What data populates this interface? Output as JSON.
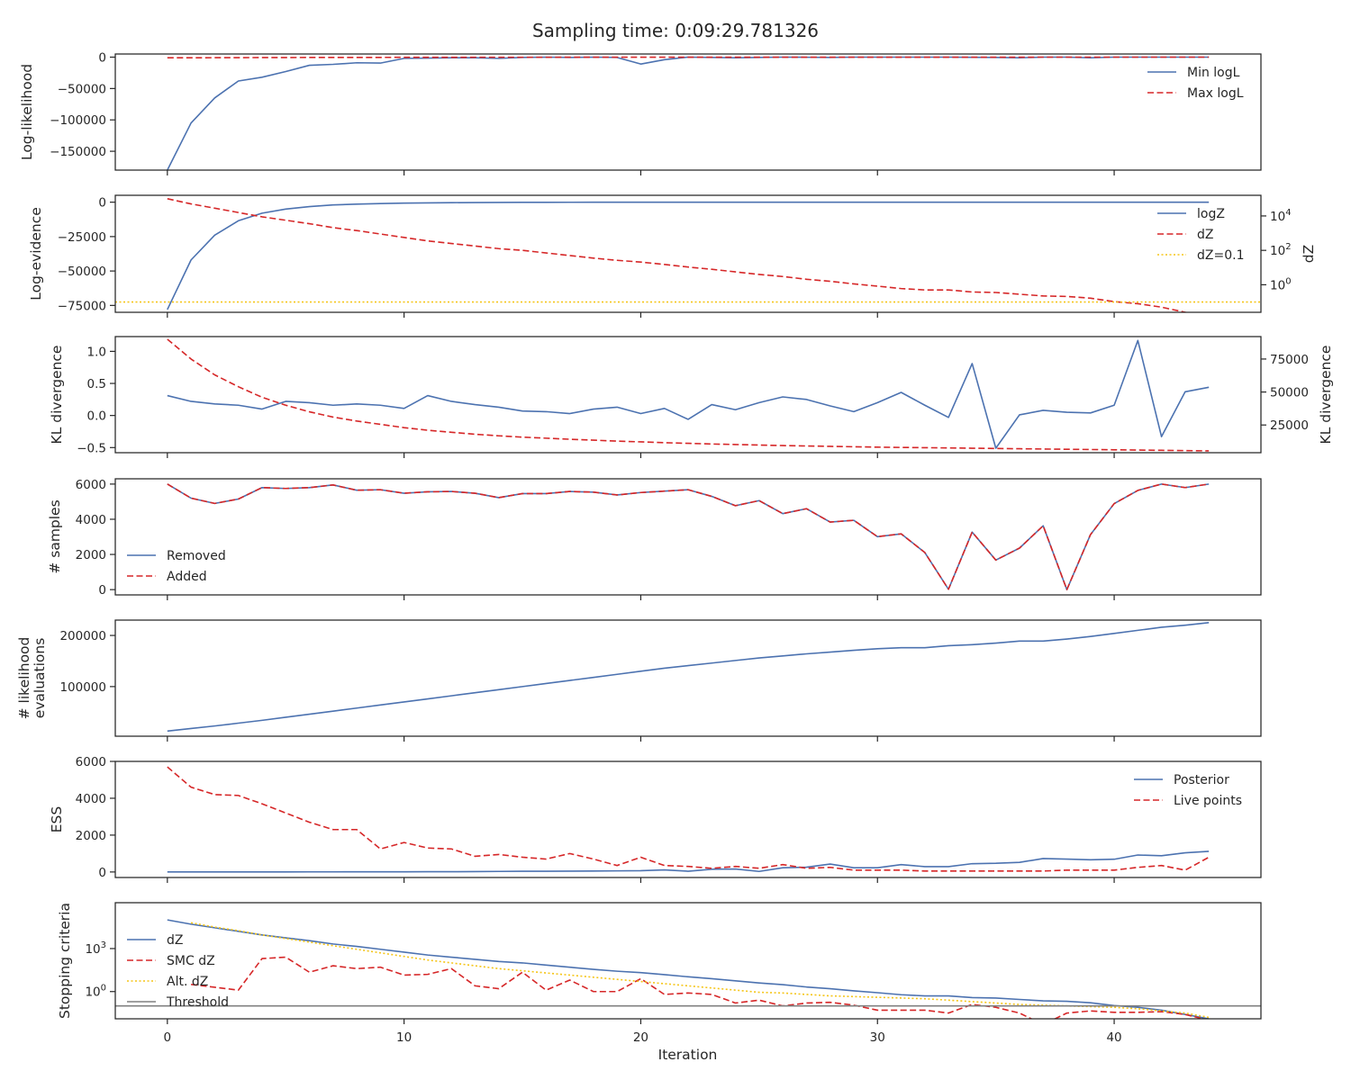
{
  "figure": {
    "title": "Sampling time: 0:09:29.781326",
    "xlabel": "Iteration"
  },
  "colors": {
    "blue": "#4c72b0",
    "red": "#d62728",
    "gold": "#f5c518",
    "grey": "#808080",
    "frame": "#262626"
  },
  "chart_data": [
    {
      "type": "line",
      "ylabel": "Log-likelihood",
      "ylim": [
        -180000,
        5000
      ],
      "yticks": [
        0,
        -50000,
        -100000,
        -150000
      ],
      "ytick_labels": [
        "0",
        "−50000",
        "−100000",
        "−150000"
      ],
      "legend": {
        "position": "top-right"
      },
      "series": [
        {
          "name": "Min logL",
          "style": "solid",
          "color": "blue",
          "x_start": 0,
          "values": [
            -180000,
            -105000,
            -65000,
            -38000,
            -32000,
            -23000,
            -13000,
            -11500,
            -9000,
            -9500,
            -2000,
            -1500,
            -1000,
            -1000,
            -2000,
            -500,
            0,
            -500,
            0,
            -500,
            -11000,
            -4000,
            0,
            -500,
            -1000,
            -500,
            0,
            -200,
            -500,
            0,
            0,
            0,
            0,
            0,
            -300,
            -500,
            -1000,
            0,
            0,
            -1000,
            0,
            0,
            0,
            0,
            0
          ]
        },
        {
          "name": "Max logL",
          "style": "dashed",
          "color": "red",
          "x_start": 0,
          "values": [
            -1000,
            -1000,
            -900,
            -800,
            -700,
            -600,
            -500,
            -500,
            -400,
            -400,
            -300,
            -300,
            -300,
            -200,
            -200,
            -200,
            -200,
            -150,
            -150,
            -150,
            -150,
            -100,
            -100,
            -100,
            -100,
            -100,
            -80,
            -80,
            -80,
            -60,
            -60,
            -60,
            -60,
            -50,
            -50,
            -50,
            -50,
            -40,
            -40,
            -40,
            -30,
            -30,
            -30,
            -30,
            -20
          ]
        }
      ]
    },
    {
      "type": "line",
      "ylabel": "Log-evidence",
      "ylim": [
        -80000,
        5000
      ],
      "yticks": [
        0,
        -25000,
        -50000,
        -75000
      ],
      "ytick_labels": [
        "0",
        "−25000",
        "−50000",
        "−75000"
      ],
      "y2label": "dZ",
      "y2_scale": "log",
      "y2lim_log10": [
        -1.6,
        5.2
      ],
      "y2ticks_exp": [
        4,
        2,
        0
      ],
      "y2tick_base": "10",
      "legend": {
        "position": "top-right"
      },
      "series": [
        {
          "name": "logZ",
          "style": "solid",
          "color": "blue",
          "axis": "left",
          "x_start": 0,
          "values": [
            -78000,
            -42000,
            -24000,
            -13500,
            -8000,
            -5000,
            -3200,
            -2000,
            -1400,
            -1000,
            -700,
            -500,
            -350,
            -250,
            -180,
            -130,
            -90,
            -65,
            -50,
            -38,
            -28,
            -22,
            -16,
            -12,
            -9,
            -7,
            -5,
            -4,
            -3,
            -2,
            -1.5,
            -1,
            -1,
            -1,
            -1,
            -1,
            -1,
            -1,
            -1,
            -1,
            -1,
            -1,
            -1,
            -1,
            -1
          ]
        },
        {
          "name": "dZ",
          "style": "dashed",
          "color": "red",
          "axis": "right",
          "x_start": 0,
          "values_log10": [
            5.0,
            4.7,
            4.45,
            4.2,
            3.95,
            3.75,
            3.55,
            3.32,
            3.15,
            2.95,
            2.75,
            2.55,
            2.4,
            2.25,
            2.1,
            2.0,
            1.85,
            1.7,
            1.55,
            1.42,
            1.32,
            1.18,
            1.03,
            0.9,
            0.75,
            0.6,
            0.48,
            0.32,
            0.2,
            0.05,
            -0.08,
            -0.22,
            -0.3,
            -0.3,
            -0.42,
            -0.45,
            -0.55,
            -0.65,
            -0.68,
            -0.78,
            -0.98,
            -1.1,
            -1.3,
            -1.6,
            -1.9
          ]
        },
        {
          "name": "dZ=0.1",
          "style": "dotted",
          "color": "gold",
          "axis": "right",
          "constant_log10": -1
        }
      ]
    },
    {
      "type": "line",
      "ylabel": "KL divergence",
      "ylim": [
        -0.58,
        1.23
      ],
      "yticks": [
        1.0,
        0.5,
        0.0,
        -0.5
      ],
      "ytick_labels": [
        "1.0",
        "0.5",
        "0.0",
        "−0.5"
      ],
      "y2label": "KL divergence",
      "y2lim": [
        4000,
        92000
      ],
      "y2ticks": [
        75000,
        50000,
        25000
      ],
      "y2tick_labels": [
        "75000",
        "50000",
        "25000"
      ],
      "series": [
        {
          "style": "solid",
          "color": "blue",
          "axis": "left",
          "x_start": 0,
          "values": [
            0.31,
            0.22,
            0.18,
            0.16,
            0.1,
            0.22,
            0.2,
            0.16,
            0.18,
            0.16,
            0.11,
            0.31,
            0.22,
            0.17,
            0.13,
            0.07,
            0.06,
            0.03,
            0.1,
            0.13,
            0.03,
            0.11,
            -0.06,
            0.17,
            0.09,
            0.2,
            0.29,
            0.25,
            0.15,
            0.06,
            0.2,
            0.36,
            0.16,
            -0.03,
            0.81,
            -0.51,
            0.01,
            0.08,
            0.05,
            0.04,
            0.16,
            1.17,
            -0.33,
            0.37,
            0.44
          ]
        },
        {
          "style": "dashed",
          "color": "red",
          "axis": "right",
          "x_start": 0,
          "values": [
            90000,
            75000,
            63000,
            54000,
            46000,
            40000,
            35000,
            31000,
            28000,
            25500,
            23000,
            21000,
            19500,
            18000,
            16800,
            15800,
            15000,
            14200,
            13500,
            12800,
            12200,
            11600,
            11100,
            10600,
            10200,
            9800,
            9400,
            9100,
            8800,
            8500,
            8200,
            8000,
            7800,
            7600,
            7400,
            7200,
            7000,
            6800,
            6600,
            6400,
            6200,
            6000,
            5800,
            5600,
            5400
          ]
        }
      ]
    },
    {
      "type": "line",
      "ylabel": "# samples",
      "ylim": [
        -300,
        6300
      ],
      "yticks": [
        6000,
        4000,
        2000,
        0
      ],
      "ytick_labels": [
        "6000",
        "4000",
        "2000",
        "0"
      ],
      "legend": {
        "position": "center-left"
      },
      "series": [
        {
          "name": "Removed",
          "style": "solid",
          "color": "blue",
          "x_start": 0,
          "values": [
            6000,
            5200,
            4900,
            5150,
            5800,
            5750,
            5800,
            5950,
            5650,
            5680,
            5480,
            5560,
            5580,
            5480,
            5230,
            5460,
            5460,
            5580,
            5540,
            5380,
            5520,
            5600,
            5680,
            5300,
            4770,
            5060,
            4320,
            4600,
            3840,
            3940,
            3010,
            3170,
            2110,
            20,
            3270,
            1680,
            2360,
            3630,
            0,
            3130,
            4890,
            5640,
            6000,
            5800,
            6000
          ]
        },
        {
          "name": "Added",
          "style": "dashed",
          "color": "red",
          "x_start": 0,
          "values": [
            6000,
            5200,
            4900,
            5150,
            5800,
            5750,
            5800,
            5950,
            5650,
            5680,
            5480,
            5560,
            5580,
            5480,
            5230,
            5460,
            5460,
            5580,
            5540,
            5380,
            5520,
            5600,
            5680,
            5300,
            4770,
            5060,
            4320,
            4600,
            3840,
            3940,
            3010,
            3170,
            2110,
            20,
            3270,
            1680,
            2360,
            3630,
            0,
            3130,
            4890,
            5640,
            6000,
            5800,
            6000
          ]
        }
      ]
    },
    {
      "type": "line",
      "ylabel": "# likelihood\nevaluations",
      "ylabel_lines": [
        "# likelihood",
        "evaluations"
      ],
      "ylim": [
        3000,
        230000
      ],
      "yticks": [
        200000,
        100000
      ],
      "ytick_labels": [
        "200000",
        "100000"
      ],
      "series": [
        {
          "style": "solid",
          "color": "blue",
          "x_start": 0,
          "values": [
            13000,
            18000,
            23000,
            28500,
            34000,
            40000,
            46000,
            52000,
            58000,
            64000,
            70000,
            76000,
            82000,
            88000,
            94000,
            100000,
            106000,
            112000,
            118000,
            124000,
            130000,
            136000,
            141000,
            146000,
            151000,
            156000,
            160000,
            164000,
            167500,
            171000,
            174000,
            176000,
            176000,
            180000,
            182000,
            185000,
            189000,
            189000,
            193000,
            198000,
            204000,
            210000,
            216000,
            220000,
            225000
          ]
        }
      ]
    },
    {
      "type": "line",
      "ylabel": "ESS",
      "ylim": [
        -300,
        6000
      ],
      "yticks": [
        6000,
        4000,
        2000,
        0
      ],
      "ytick_labels": [
        "6000",
        "4000",
        "2000",
        "0"
      ],
      "legend": {
        "position": "top-right"
      },
      "series": [
        {
          "name": "Posterior",
          "style": "solid",
          "color": "blue",
          "x_start": 0,
          "values": [
            0,
            0,
            0,
            0,
            0,
            0,
            5,
            5,
            10,
            10,
            10,
            15,
            15,
            20,
            30,
            40,
            40,
            45,
            50,
            60,
            70,
            110,
            40,
            150,
            160,
            30,
            230,
            260,
            430,
            230,
            230,
            400,
            290,
            290,
            450,
            470,
            520,
            730,
            700,
            660,
            690,
            920,
            880,
            1040,
            1120
          ]
        },
        {
          "name": "Live points",
          "style": "dashed",
          "color": "red",
          "x_start": 0,
          "values": [
            5700,
            4600,
            4200,
            4150,
            3700,
            3200,
            2700,
            2300,
            2300,
            1250,
            1600,
            1300,
            1250,
            850,
            950,
            800,
            700,
            1000,
            700,
            350,
            800,
            350,
            300,
            200,
            300,
            200,
            400,
            200,
            250,
            100,
            100,
            100,
            50,
            50,
            50,
            50,
            50,
            50,
            100,
            100,
            100,
            250,
            350,
            100,
            800
          ]
        }
      ]
    },
    {
      "type": "line",
      "ylabel": "Stopping criteria",
      "y_scale": "log",
      "ylim_log10": [
        -1.9,
        6.2
      ],
      "yticks_exp": [
        3,
        0
      ],
      "ytick_base": "10",
      "legend": {
        "position": "center-left"
      },
      "series": [
        {
          "name": "dZ",
          "style": "solid",
          "color": "blue",
          "x_start": 0,
          "values_log10": [
            5.0,
            4.7,
            4.45,
            4.2,
            3.95,
            3.75,
            3.55,
            3.32,
            3.15,
            2.95,
            2.75,
            2.55,
            2.4,
            2.25,
            2.1,
            2.0,
            1.85,
            1.7,
            1.55,
            1.42,
            1.32,
            1.18,
            1.03,
            0.9,
            0.75,
            0.6,
            0.48,
            0.32,
            0.2,
            0.05,
            -0.08,
            -0.22,
            -0.3,
            -0.3,
            -0.42,
            -0.45,
            -0.55,
            -0.65,
            -0.68,
            -0.78,
            -0.98,
            -1.1,
            -1.3,
            -1.6,
            -1.9
          ]
        },
        {
          "name": "SMC dZ",
          "style": "dashed",
          "color": "red",
          "x_start": 1,
          "values_log10": [
            0.5,
            0.3,
            0.1,
            2.3,
            2.4,
            1.35,
            1.8,
            1.6,
            1.7,
            1.15,
            1.2,
            1.6,
            0.4,
            0.2,
            1.35,
            0.1,
            0.8,
            0.0,
            0.0,
            0.9,
            -0.2,
            -0.1,
            -0.2,
            -0.8,
            -0.6,
            -1.0,
            -0.8,
            -0.75,
            -0.95,
            -1.3,
            -1.3,
            -1.3,
            -1.5,
            -0.9,
            -1.1,
            -1.5,
            -2.3,
            -1.5,
            -1.35,
            -1.45,
            -1.45,
            -1.4,
            -1.6,
            -2.0
          ]
        },
        {
          "name": "Alt. dZ",
          "style": "dotted",
          "color": "gold",
          "x_start": 1,
          "values_log10": [
            4.8,
            4.5,
            4.25,
            3.95,
            3.7,
            3.45,
            3.2,
            2.95,
            2.7,
            2.45,
            2.2,
            2.0,
            1.8,
            1.6,
            1.45,
            1.3,
            1.15,
            1.0,
            0.85,
            0.7,
            0.55,
            0.4,
            0.25,
            0.1,
            -0.05,
            -0.1,
            -0.2,
            -0.3,
            -0.35,
            -0.4,
            -0.45,
            -0.5,
            -0.6,
            -0.7,
            -0.8,
            -0.9,
            -0.95,
            -1.0,
            -1.05,
            -1.1,
            -1.2,
            -1.35,
            -1.5,
            -1.8
          ]
        },
        {
          "name": "Threshold",
          "style": "solid",
          "color": "grey",
          "constant_log10": -1
        }
      ]
    }
  ],
  "x_axis": {
    "xlim": [
      -2.2,
      46.2
    ],
    "ticks": [
      0,
      10,
      20,
      30,
      40
    ],
    "tick_labels": [
      "0",
      "10",
      "20",
      "30",
      "40"
    ]
  }
}
